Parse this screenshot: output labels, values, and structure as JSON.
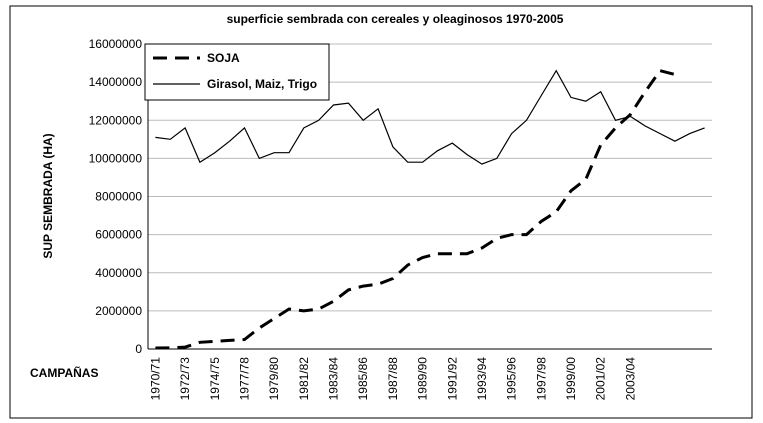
{
  "chart_data": {
    "type": "line",
    "title": "superficie sembrada con cereales y oleaginosos 1970-2005",
    "y_label": "SUP SEMBRADA (HA)",
    "x_label": "CAMPAÑAS",
    "categories": [
      "1970/71",
      null,
      "1972/73",
      null,
      "1974/75",
      null,
      "1977/78",
      null,
      "1979/80",
      null,
      "1981/82",
      null,
      "1983/84",
      null,
      "1985/86",
      null,
      "1987/88",
      null,
      "1989/90",
      null,
      "1991/92",
      null,
      "1993/94",
      null,
      "1995/96",
      null,
      "1997/98",
      null,
      "1999/00",
      null,
      "2001/02",
      null,
      "2003/04",
      null,
      null,
      null,
      null,
      null
    ],
    "series": [
      {
        "name": "SOJA",
        "color": "#000000",
        "dash": true,
        "values": [
          50000,
          60000,
          100000,
          350000,
          400000,
          450000,
          500000,
          1100000,
          1600000,
          2100000,
          2000000,
          2100000,
          2500000,
          3100000,
          3300000,
          3400000,
          3700000,
          4400000,
          4800000,
          5000000,
          5000000,
          5000000,
          5300000,
          5800000,
          6000000,
          6000000,
          6700000,
          7200000,
          8300000,
          8900000,
          10700000,
          11600000,
          12300000,
          13500000,
          14600000,
          14400000,
          null,
          null
        ]
      },
      {
        "name": "Girasol, Maiz, Trigo",
        "color": "#000000",
        "dash": false,
        "values": [
          11100000,
          11000000,
          11600000,
          9800000,
          10300000,
          10900000,
          11600000,
          10000000,
          10300000,
          10300000,
          11600000,
          12000000,
          12800000,
          12900000,
          12000000,
          12600000,
          10600000,
          9800000,
          9800000,
          10400000,
          10800000,
          10200000,
          9700000,
          10000000,
          11300000,
          12000000,
          13300000,
          14600000,
          13200000,
          13000000,
          13500000,
          12000000,
          12200000,
          11700000,
          11300000,
          10900000,
          11300000,
          11600000
        ]
      }
    ],
    "ylim": [
      0,
      16000000
    ],
    "yticks": [
      0,
      2000000,
      4000000,
      6000000,
      8000000,
      10000000,
      12000000,
      14000000,
      16000000
    ],
    "grid": true,
    "legend": "upper left"
  }
}
